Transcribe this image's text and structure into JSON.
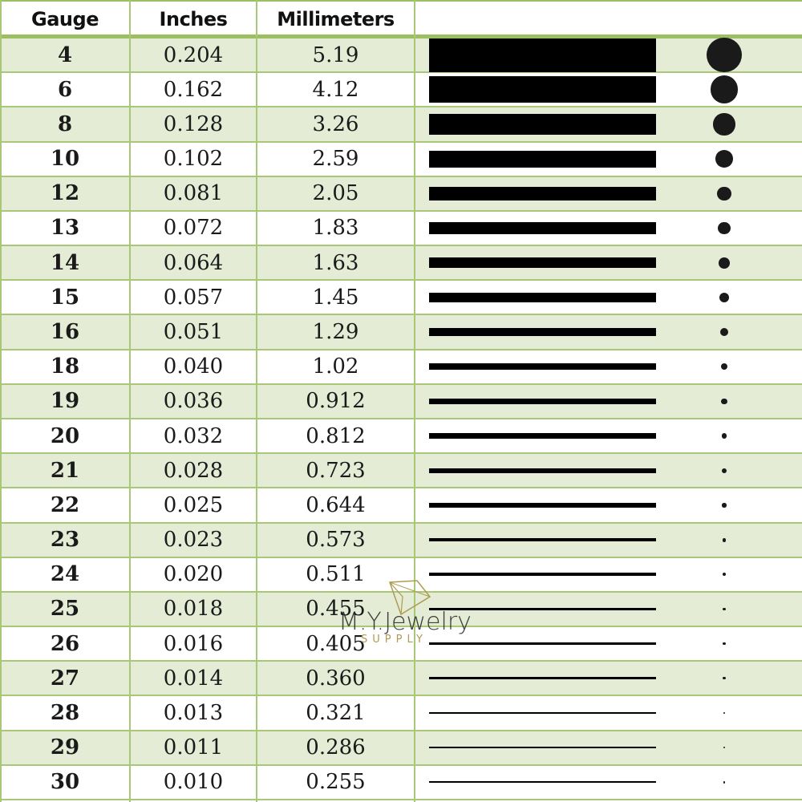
{
  "headers": {
    "gauge": "Gauge",
    "inches": "Inches",
    "mm": "Millimeters",
    "visual": ""
  },
  "rows": [
    {
      "gauge": "4",
      "inches": "0.204",
      "mm": "5.19"
    },
    {
      "gauge": "6",
      "inches": "0.162",
      "mm": "4.12"
    },
    {
      "gauge": "8",
      "inches": "0.128",
      "mm": "3.26"
    },
    {
      "gauge": "10",
      "inches": "0.102",
      "mm": "2.59"
    },
    {
      "gauge": "12",
      "inches": "0.081",
      "mm": "2.05"
    },
    {
      "gauge": "13",
      "inches": "0.072",
      "mm": "1.83"
    },
    {
      "gauge": "14",
      "inches": "0.064",
      "mm": "1.63"
    },
    {
      "gauge": "15",
      "inches": "0.057",
      "mm": "1.45"
    },
    {
      "gauge": "16",
      "inches": "0.051",
      "mm": "1.29"
    },
    {
      "gauge": "18",
      "inches": "0.040",
      "mm": "1.02"
    },
    {
      "gauge": "19",
      "inches": "0.036",
      "mm": "0.912"
    },
    {
      "gauge": "20",
      "inches": "0.032",
      "mm": "0.812"
    },
    {
      "gauge": "21",
      "inches": "0.028",
      "mm": "0.723"
    },
    {
      "gauge": "22",
      "inches": "0.025",
      "mm": "0.644"
    },
    {
      "gauge": "23",
      "inches": "0.023",
      "mm": "0.573"
    },
    {
      "gauge": "24",
      "inches": "0.020",
      "mm": "0.511"
    },
    {
      "gauge": "25",
      "inches": "0.018",
      "mm": "0.455"
    },
    {
      "gauge": "26",
      "inches": "0.016",
      "mm": "0.405"
    },
    {
      "gauge": "27",
      "inches": "0.014",
      "mm": "0.360"
    },
    {
      "gauge": "28",
      "inches": "0.013",
      "mm": "0.321"
    },
    {
      "gauge": "29",
      "inches": "0.011",
      "mm": "0.286"
    },
    {
      "gauge": "30",
      "inches": "0.010",
      "mm": "0.255"
    }
  ],
  "watermark": {
    "brand": "M.Y.Jewelry",
    "sub": "SUPPLY"
  },
  "colors": {
    "grid": "#a9c877",
    "alt_row": "#e4ecd6",
    "mark": "#000000"
  }
}
